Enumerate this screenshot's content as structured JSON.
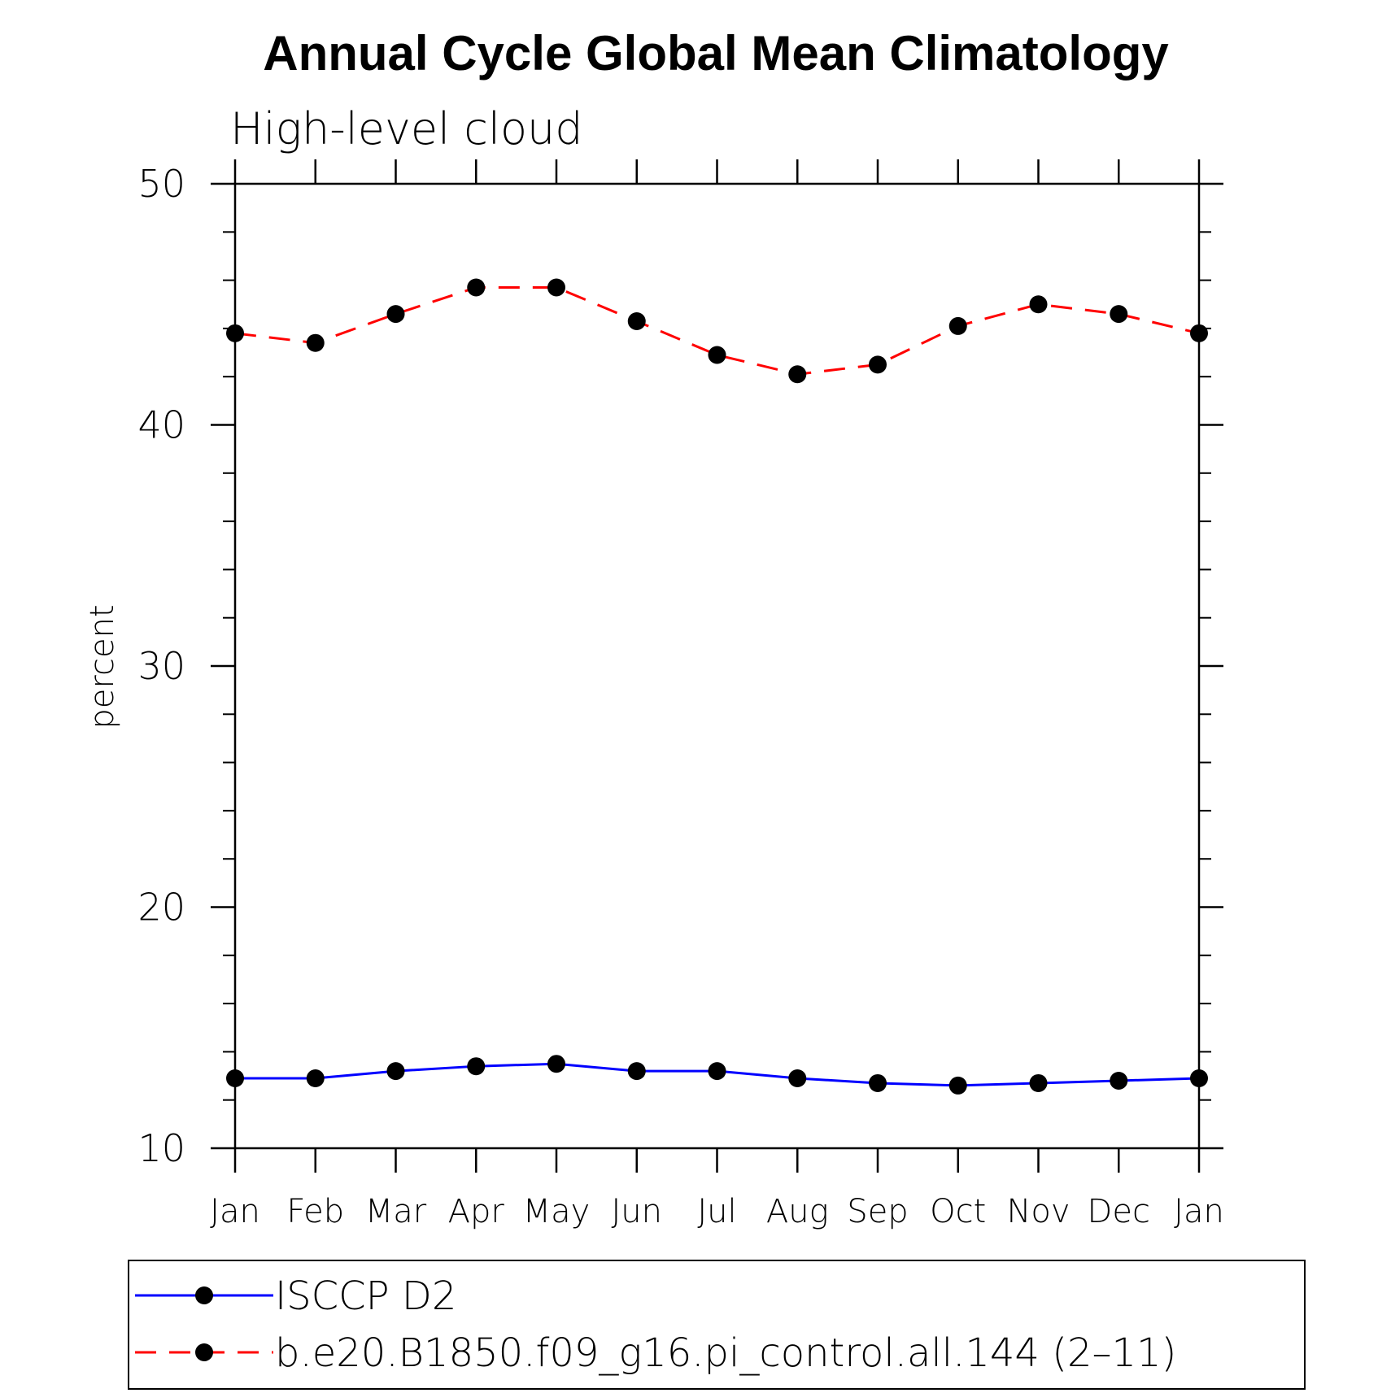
{
  "chart_data": {
    "type": "line",
    "title": "Annual Cycle Global Mean Climatology",
    "subtitle": "High-level cloud",
    "ylabel": "percent",
    "ylim": [
      10,
      50
    ],
    "yticks": [
      "10",
      "20",
      "30",
      "40",
      "50"
    ],
    "categories": [
      "Jan",
      "Feb",
      "Mar",
      "Apr",
      "May",
      "Jun",
      "Jul",
      "Aug",
      "Sep",
      "Oct",
      "Nov",
      "Dec",
      "Jan"
    ],
    "legend_position": "bottom",
    "grid": false,
    "series": [
      {
        "name": "ISCCP D2",
        "color": "#0000ff",
        "dash": "solid",
        "marker": "filled-circle",
        "values": [
          12.9,
          12.9,
          13.2,
          13.4,
          13.5,
          13.2,
          13.2,
          12.9,
          12.7,
          12.6,
          12.7,
          12.8,
          12.9
        ]
      },
      {
        "name": "b.e20.B1850.f09_g16.pi_control.all.144 (2–11)",
        "color": "#ff0000",
        "dash": "dashed",
        "marker": "filled-circle",
        "values": [
          43.8,
          43.4,
          44.6,
          45.7,
          45.7,
          44.3,
          42.9,
          42.1,
          42.5,
          44.1,
          45.0,
          44.6,
          43.8
        ]
      }
    ]
  }
}
